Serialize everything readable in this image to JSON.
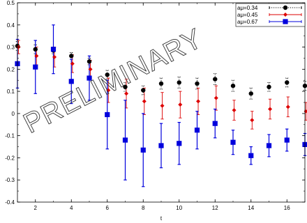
{
  "chart_data": {
    "type": "scatter",
    "xlabel": "t",
    "ylabel": "",
    "title": "",
    "xlim": [
      1,
      17
    ],
    "ylim": [
      -0.4,
      0.5
    ],
    "xticks": [
      2,
      4,
      6,
      8,
      10,
      12,
      14,
      16
    ],
    "yticks": [
      -0.4,
      -0.3,
      -0.2,
      -0.1,
      0,
      0.1,
      0.2,
      0.3,
      0.4,
      0.5
    ],
    "grid": false,
    "legend_position": "top-right",
    "annotations": [
      "PRELIMINARY"
    ],
    "series": [
      {
        "name": "aμ=0.34",
        "color": "#000000",
        "marker": "circle",
        "line_style": "dotted",
        "points": [
          {
            "x": 1,
            "y": 0.305,
            "err": 0.02
          },
          {
            "x": 2,
            "y": 0.29,
            "err": 0.02
          },
          {
            "x": 3,
            "y": 0.285,
            "err": 0.015
          },
          {
            "x": 4,
            "y": 0.26,
            "err": 0.015
          },
          {
            "x": 5,
            "y": 0.235,
            "err": 0.015
          },
          {
            "x": 6,
            "y": 0.175,
            "err": 0.02
          },
          {
            "x": 7,
            "y": 0.12,
            "err": 0.02
          },
          {
            "x": 8,
            "y": 0.105,
            "err": 0.02
          },
          {
            "x": 9,
            "y": 0.135,
            "err": 0.025
          },
          {
            "x": 10,
            "y": 0.14,
            "err": 0.025
          },
          {
            "x": 11,
            "y": 0.135,
            "err": 0.025
          },
          {
            "x": 12,
            "y": 0.155,
            "err": 0.025
          },
          {
            "x": 13,
            "y": 0.125,
            "err": 0.025
          },
          {
            "x": 14,
            "y": 0.09,
            "err": 0.025
          },
          {
            "x": 15,
            "y": 0.12,
            "err": 0.02
          },
          {
            "x": 16,
            "y": 0.14,
            "err": 0.02
          },
          {
            "x": 17,
            "y": 0.125,
            "err": 0.02
          }
        ]
      },
      {
        "name": "aμ=0.45",
        "color": "#dd0000",
        "marker": "diamond",
        "line_style": "solid",
        "points": [
          {
            "x": 1,
            "y": 0.3,
            "err": 0.03
          },
          {
            "x": 2,
            "y": 0.26,
            "err": 0.04
          },
          {
            "x": 3,
            "y": 0.255,
            "err": 0.045
          },
          {
            "x": 4,
            "y": 0.225,
            "err": 0.04
          },
          {
            "x": 5,
            "y": 0.2,
            "err": 0.04
          },
          {
            "x": 6,
            "y": 0.105,
            "err": 0.055
          },
          {
            "x": 7,
            "y": 0.09,
            "err": 0.065
          },
          {
            "x": 8,
            "y": 0.055,
            "err": 0.06
          },
          {
            "x": 9,
            "y": 0.035,
            "err": 0.06
          },
          {
            "x": 10,
            "y": 0.04,
            "err": 0.06
          },
          {
            "x": 11,
            "y": 0.055,
            "err": 0.06
          },
          {
            "x": 12,
            "y": 0.07,
            "err": 0.055
          },
          {
            "x": 13,
            "y": 0.015,
            "err": 0.045
          },
          {
            "x": 14,
            "y": -0.03,
            "err": 0.04
          },
          {
            "x": 15,
            "y": 0.02,
            "err": 0.045
          },
          {
            "x": 16,
            "y": 0.03,
            "err": 0.045
          },
          {
            "x": 17,
            "y": 0.01,
            "err": 0.04
          }
        ]
      },
      {
        "name": "aμ=0.67",
        "color": "#0000dd",
        "marker": "square",
        "line_style": "solid",
        "points": [
          {
            "x": 1,
            "y": 0.225,
            "err": 0.11
          },
          {
            "x": 2,
            "y": 0.21,
            "err": 0.12
          },
          {
            "x": 3,
            "y": 0.29,
            "err": 0.11
          },
          {
            "x": 4,
            "y": 0.145,
            "err": 0.1
          },
          {
            "x": 5,
            "y": 0.16,
            "err": 0.1
          },
          {
            "x": 6,
            "y": -0.005,
            "err": 0.155
          },
          {
            "x": 7,
            "y": -0.12,
            "err": 0.18
          },
          {
            "x": 8,
            "y": -0.165,
            "err": 0.165
          },
          {
            "x": 9,
            "y": -0.145,
            "err": 0.1
          },
          {
            "x": 10,
            "y": -0.135,
            "err": 0.095
          },
          {
            "x": 11,
            "y": -0.075,
            "err": 0.085
          },
          {
            "x": 12,
            "y": -0.045,
            "err": 0.065
          },
          {
            "x": 13,
            "y": -0.13,
            "err": 0.055
          },
          {
            "x": 14,
            "y": -0.19,
            "err": 0.04
          },
          {
            "x": 15,
            "y": -0.145,
            "err": 0.05
          },
          {
            "x": 16,
            "y": -0.12,
            "err": 0.05
          },
          {
            "x": 17,
            "y": -0.14,
            "err": 0.05
          }
        ]
      }
    ]
  }
}
